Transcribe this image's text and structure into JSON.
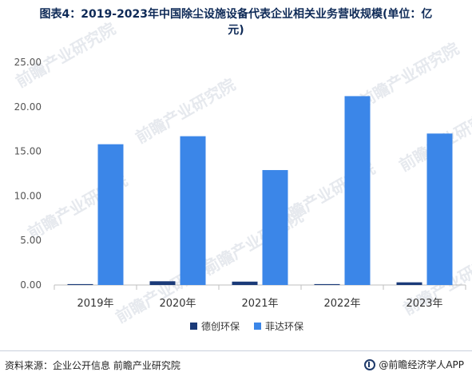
{
  "title_line1": "图表4：2019-2023年中国除尘设施设备代表企业相关业务营收规模(单位：亿",
  "title_line2": "元)",
  "source": "资料来源：企业公开信息 前瞻产业研究院",
  "brand": "@前瞻经济学人APP",
  "watermark": "前瞻产业研究院",
  "chart_data": {
    "type": "bar",
    "categories": [
      "2019年",
      "2020年",
      "2021年",
      "2022年",
      "2023年"
    ],
    "series": [
      {
        "name": "德创环保",
        "color": "#1a3a78",
        "values": [
          0.1,
          0.42,
          0.38,
          0.1,
          0.3
        ]
      },
      {
        "name": "菲达环保",
        "color": "#3b86e8",
        "values": [
          15.8,
          16.7,
          12.9,
          21.2,
          17.0
        ]
      }
    ],
    "ylim": [
      0,
      25
    ],
    "yticks": [
      "0.00",
      "5.00",
      "10.00",
      "15.00",
      "20.00",
      "25.00"
    ],
    "legend": "bottom"
  }
}
